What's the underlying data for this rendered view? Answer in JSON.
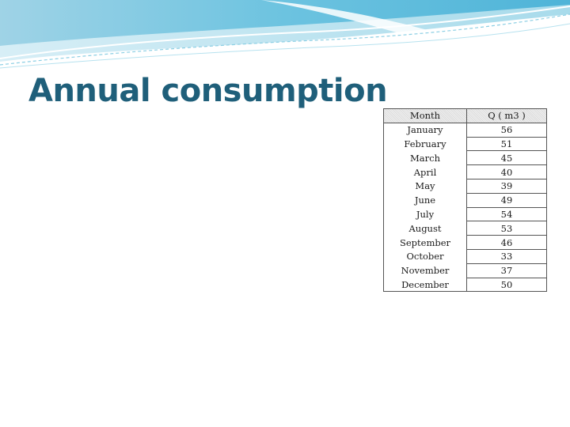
{
  "slide": {
    "title": "Annual consumption",
    "accent_color": "#1f5f7a"
  },
  "table": {
    "headers": {
      "month": "Month",
      "q": "Q ( m3 )"
    },
    "rows": [
      {
        "month": "January",
        "q": "56"
      },
      {
        "month": "February",
        "q": "51"
      },
      {
        "month": "March",
        "q": "45"
      },
      {
        "month": "April",
        "q": "40"
      },
      {
        "month": "May",
        "q": "39"
      },
      {
        "month": "June",
        "q": "49"
      },
      {
        "month": "July",
        "q": "54"
      },
      {
        "month": "August",
        "q": "53"
      },
      {
        "month": "September",
        "q": "46"
      },
      {
        "month": "October",
        "q": "33"
      },
      {
        "month": "November",
        "q": "37"
      },
      {
        "month": "December",
        "q": "50"
      }
    ]
  }
}
